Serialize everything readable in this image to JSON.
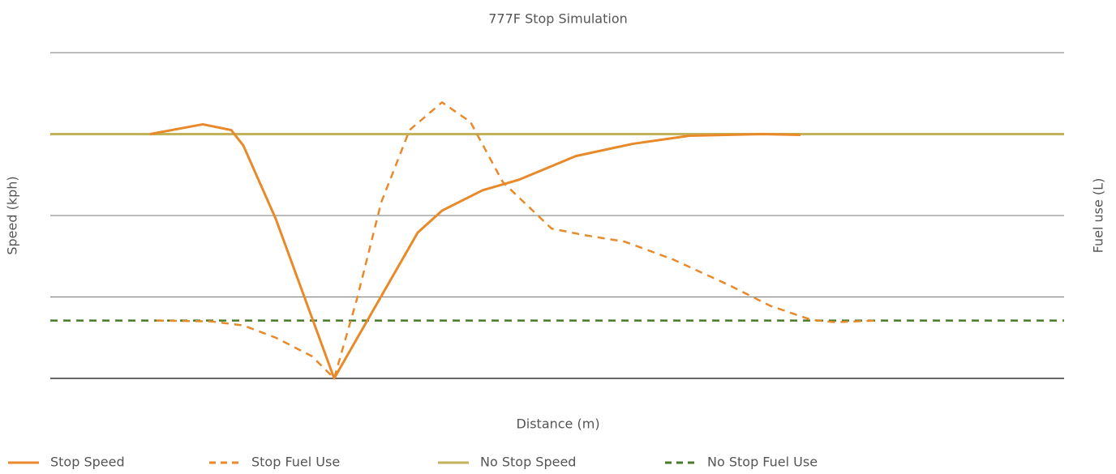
{
  "chart_data": {
    "type": "line",
    "title": "777F Stop Simulation",
    "x_label": "Distance (m)",
    "y_label": "Speed (kph)",
    "y2_label": "Fuel use (L)",
    "xlim": [
      0,
      125
    ],
    "ylim": [
      0,
      4
    ],
    "yticks": [
      0,
      1,
      2,
      3,
      4
    ],
    "y2lim": [
      0,
      4
    ],
    "grid": true,
    "legend": "bottom",
    "series": [
      {
        "name": "Stop Speed",
        "color": "#e8892a",
        "dash": false,
        "x": [
          12.3,
          18.8,
          22.3,
          23.8,
          27.8,
          35,
          45.3,
          48.3,
          53.3,
          57.8,
          64.8,
          71.8,
          78.8,
          87.8,
          92.5
        ],
        "values": [
          3.0,
          3.12,
          3.05,
          2.86,
          1.96,
          0,
          1.79,
          2.06,
          2.31,
          2.44,
          2.73,
          2.88,
          2.98,
          3.0,
          2.99
        ]
      },
      {
        "name": "Stop Fuel Use",
        "color": "#e8892a",
        "dash": true,
        "axis": "y2",
        "x": [
          13.1,
          19.8,
          23.8,
          27.8,
          32.3,
          35,
          37.8,
          40.8,
          44.3,
          48.3,
          51.8,
          55.8,
          61.8,
          65.8,
          70.8,
          76.8,
          83.8,
          88.8,
          93.8,
          96.8,
          101.8
        ],
        "values": [
          0.71,
          0.7,
          0.65,
          0.5,
          0.27,
          0,
          0.97,
          2.16,
          3.05,
          3.39,
          3.15,
          2.41,
          1.84,
          1.76,
          1.68,
          1.46,
          1.14,
          0.89,
          0.72,
          0.69,
          0.71
        ]
      },
      {
        "name": "No Stop Speed",
        "color": "#c2b25a",
        "dash": false,
        "x": [
          0,
          125
        ],
        "values": [
          3.0,
          3.0
        ]
      },
      {
        "name": "No Stop Fuel Use",
        "color": "#4a7a2a",
        "dash": true,
        "axis": "y2",
        "x": [
          0,
          125
        ],
        "values": [
          0.71,
          0.71
        ]
      }
    ]
  }
}
